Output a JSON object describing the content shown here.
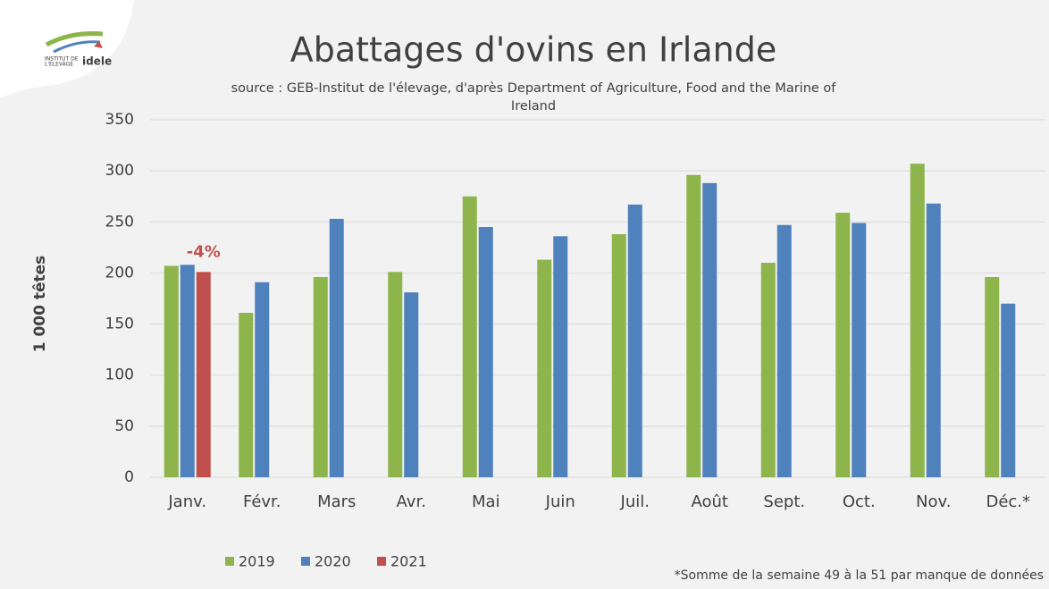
{
  "logo": {
    "line1": "INSTITUT DE",
    "line2": "L'ÉLEVAGE",
    "brand": "idele"
  },
  "chart_data": {
    "type": "bar",
    "title": "Abattages d'ovins en Irlande",
    "subtitle": [
      "source : GEB-Institut de l'élevage, d'après Department of Agriculture, Food and the Marine of",
      "Ireland"
    ],
    "y_label": "1 000 têtes",
    "categories": [
      "Janv.",
      "Févr.",
      "Mars",
      "Avr.",
      "Mai",
      "Juin",
      "Juil.",
      "Août",
      "Sept.",
      "Oct.",
      "Nov.",
      "Déc.*"
    ],
    "series": [
      {
        "name": "2019",
        "color": "#8db54b",
        "values": [
          207,
          161,
          196,
          201,
          275,
          213,
          238,
          296,
          210,
          259,
          307,
          196
        ]
      },
      {
        "name": "2020",
        "color": "#4f81bd",
        "values": [
          208,
          191,
          253,
          181,
          245,
          236,
          267,
          288,
          247,
          249,
          268,
          170
        ]
      },
      {
        "name": "2021",
        "color": "#c0504d",
        "values": [
          201,
          null,
          null,
          null,
          null,
          null,
          null,
          null,
          null,
          null,
          null,
          null
        ]
      }
    ],
    "annotations": [
      {
        "text": "-4%",
        "category": "Janv.",
        "series": "2021",
        "color": "#c0504d"
      }
    ],
    "footnote": "*Somme de la semaine 49 à la 51 par manque de données",
    "ylim": [
      0,
      350
    ],
    "yticks": [
      0,
      50,
      100,
      150,
      200,
      250,
      300,
      350
    ],
    "grid": true,
    "legend": "bottom"
  }
}
